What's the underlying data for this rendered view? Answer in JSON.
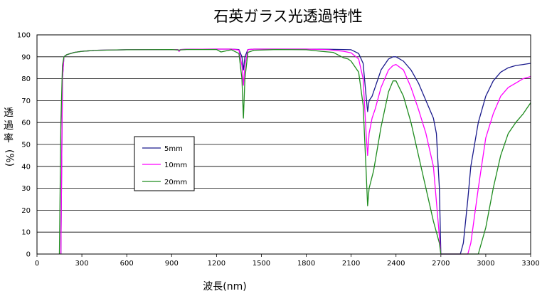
{
  "chart_data": {
    "type": "line",
    "title": "石英ガラス光透過特性",
    "xlabel": "波長(nm)",
    "ylabel": "透過率(%)",
    "ylabel_chars": [
      "透",
      "過",
      "率",
      "(%)"
    ],
    "xlim": [
      0,
      3300
    ],
    "ylim": [
      0,
      100
    ],
    "xticks": [
      0,
      300,
      600,
      900,
      1200,
      1500,
      1800,
      2100,
      2400,
      2700,
      3000,
      3300
    ],
    "yticks": [
      0,
      10,
      20,
      30,
      40,
      50,
      60,
      70,
      80,
      90,
      100
    ],
    "grid": "horizontal",
    "legend_position": "center-left",
    "series": [
      {
        "name": "5mm",
        "color": "#1a1a8c",
        "x": [
          160,
          170,
          180,
          200,
          250,
          300,
          400,
          600,
          900,
          940,
          950,
          960,
          1000,
          1200,
          1300,
          1350,
          1370,
          1380,
          1390,
          1410,
          1450,
          1600,
          1800,
          1950,
          2050,
          2100,
          2150,
          2180,
          2200,
          2210,
          2220,
          2240,
          2260,
          2300,
          2350,
          2380,
          2400,
          2450,
          2500,
          2550,
          2600,
          2650,
          2670,
          2690,
          2700,
          2720,
          2760,
          2800,
          2830,
          2850,
          2880,
          2900,
          2950,
          3000,
          3050,
          3100,
          3150,
          3200,
          3250,
          3300
        ],
        "values": [
          0,
          80,
          90,
          91,
          92,
          92.5,
          93,
          93.2,
          93.3,
          93.3,
          92.5,
          93.3,
          93.4,
          93.5,
          93.5,
          93.3,
          90,
          84,
          90,
          93.3,
          93.5,
          93.5,
          93.5,
          93.4,
          93.3,
          93.2,
          91.5,
          87,
          72,
          65,
          70,
          72,
          76,
          84,
          89,
          90,
          90,
          88,
          84,
          78,
          70,
          62,
          55,
          30,
          0,
          0,
          0,
          0,
          0,
          5,
          25,
          40,
          60,
          72,
          79,
          83,
          85,
          86,
          86.5,
          87
        ]
      },
      {
        "name": "10mm",
        "color": "#ff00ff",
        "x": [
          160,
          170,
          180,
          200,
          250,
          300,
          400,
          600,
          900,
          940,
          950,
          960,
          1000,
          1200,
          1300,
          1350,
          1370,
          1380,
          1390,
          1410,
          1450,
          1600,
          1800,
          1950,
          2050,
          2100,
          2150,
          2180,
          2200,
          2210,
          2220,
          2240,
          2260,
          2300,
          2350,
          2380,
          2400,
          2450,
          2500,
          2550,
          2600,
          2650,
          2700,
          2720,
          2750,
          2800,
          2850,
          2880,
          2900,
          2950,
          3000,
          3050,
          3100,
          3150,
          3200,
          3250,
          3300
        ],
        "values": [
          0,
          80,
          90,
          91,
          92,
          92.5,
          93,
          93.2,
          93.3,
          93.3,
          92.5,
          93.3,
          93.4,
          93.5,
          93.5,
          93.1,
          86,
          77,
          86,
          93.2,
          93.5,
          93.5,
          93.5,
          93.2,
          92.5,
          91.8,
          89,
          80,
          55,
          45,
          55,
          62,
          66,
          76,
          84,
          86,
          86.5,
          84,
          76,
          66,
          55,
          40,
          0,
          0,
          0,
          0,
          0,
          0,
          5,
          30,
          53,
          64,
          72,
          76,
          78,
          80,
          81
        ]
      },
      {
        "name": "20mm",
        "color": "#1f8c1f",
        "x": [
          150,
          160,
          170,
          180,
          200,
          250,
          300,
          400,
          600,
          900,
          950,
          1000,
          1200,
          1230,
          1250,
          1300,
          1350,
          1370,
          1380,
          1390,
          1410,
          1450,
          1600,
          1800,
          1900,
          1980,
          2050,
          2080,
          2100,
          2150,
          2180,
          2200,
          2210,
          2220,
          2250,
          2300,
          2350,
          2380,
          2400,
          2450,
          2500,
          2550,
          2600,
          2650,
          2690,
          2700,
          2720,
          2760,
          2800,
          2850,
          2900,
          2950,
          3000,
          3050,
          3100,
          3150,
          3200,
          3250,
          3300
        ],
        "values": [
          0,
          60,
          86,
          90,
          91,
          92,
          92.5,
          93,
          93.2,
          93.3,
          93.1,
          93.3,
          93.3,
          92.2,
          92.5,
          93.2,
          91.5,
          80,
          62,
          80,
          92,
          93,
          93.3,
          93.2,
          92.5,
          92,
          89.5,
          89,
          88,
          83,
          68,
          38,
          22,
          30,
          38,
          58,
          74,
          79,
          79,
          72,
          60,
          45,
          30,
          15,
          5,
          0,
          0,
          0,
          0,
          0,
          0,
          0,
          12,
          30,
          45,
          55,
          60,
          64,
          69
        ]
      }
    ]
  }
}
